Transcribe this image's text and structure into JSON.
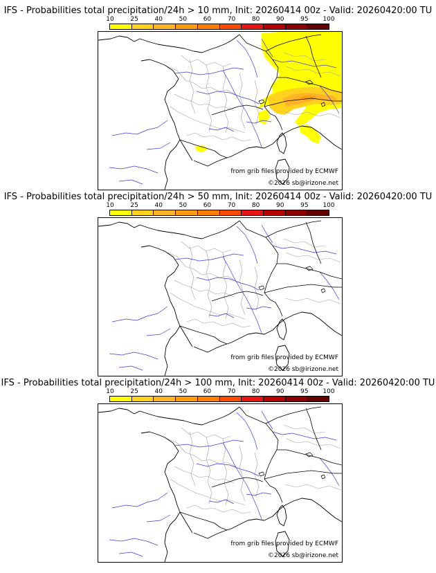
{
  "colorbar": {
    "ticks": [
      "10",
      "25",
      "40",
      "50",
      "60",
      "70",
      "80",
      "90",
      "95",
      "100"
    ],
    "colors": [
      "#ffff00",
      "#ffd21e",
      "#ffb428",
      "#ff9b0f",
      "#ff7d00",
      "#ff4b00",
      "#e61414",
      "#b40000",
      "#8c0000",
      "#640000"
    ]
  },
  "credits": {
    "source": "from grib files provided by ECMWF",
    "copyright": "©2026 sb@irizone.net"
  },
  "panels": [
    {
      "title": "IFS - Probabilities total precipitation/24h > 10 mm, Init: 20260414 00z - Valid: 20260420:00 TU",
      "has_precip": true
    },
    {
      "title": "IFS - Probabilities total precipitation/24h > 50 mm, Init: 20260414 00z - Valid: 20260420:00 TU",
      "has_precip": false
    },
    {
      "title": "IFS - Probabilities total precipitation/24h > 100 mm, Init: 20260414 00z - Valid: 20260420:00 TU",
      "has_precip": false
    }
  ]
}
